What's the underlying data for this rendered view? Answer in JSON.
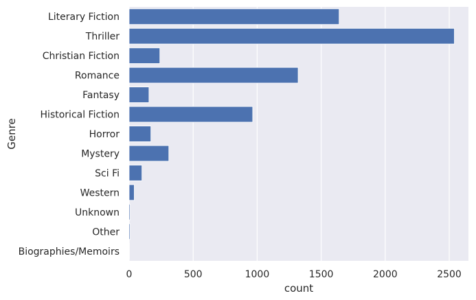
{
  "chart_data": {
    "type": "bar",
    "orientation": "horizontal",
    "title": "",
    "xlabel": "count",
    "ylabel": "Genre",
    "categories": [
      "Literary Fiction",
      "Thriller",
      "Christian Fiction",
      "Romance",
      "Fantasy",
      "Historical Fiction",
      "Horror",
      "Mystery",
      "Sci Fi",
      "Western",
      "Unknown",
      "Other",
      "Biographies/Memoirs"
    ],
    "values": [
      1640,
      2540,
      240,
      1320,
      155,
      965,
      170,
      310,
      100,
      40,
      8,
      8,
      2
    ],
    "xlim": [
      0,
      2650
    ],
    "xticks": [
      0,
      500,
      1000,
      1500,
      2000,
      2500
    ],
    "grid": true,
    "legend": "none",
    "colors": {
      "bar": "#4c72b0",
      "background": "#eaeaf2",
      "grid": "#ffffff",
      "text": "#262626"
    }
  }
}
